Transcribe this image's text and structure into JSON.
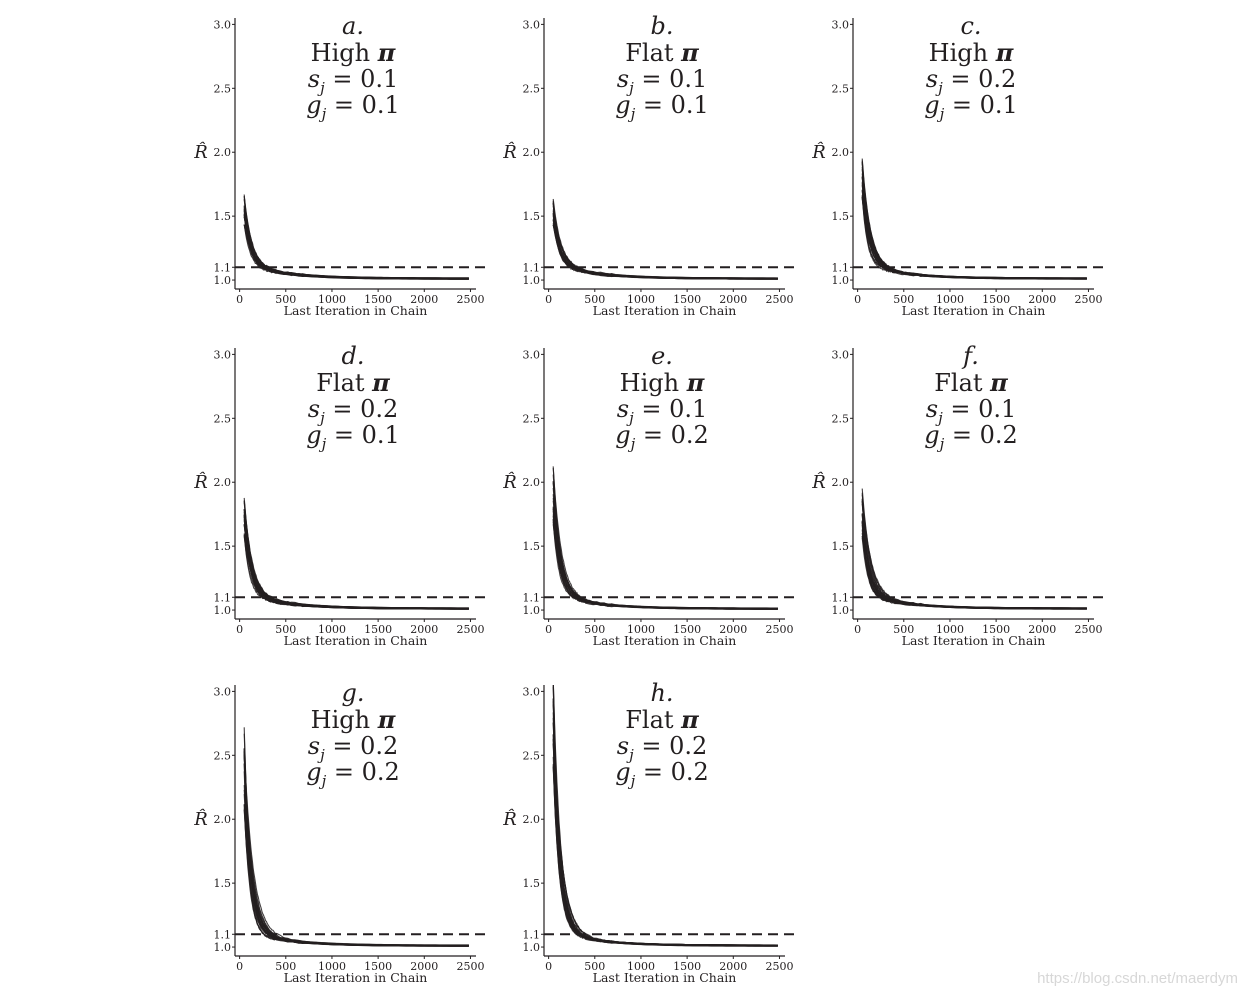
{
  "watermark": "https://blog.csdn.net/maerdym",
  "shared": {
    "xlabel": "Last Iteration in Chain",
    "ylabel": "R̂",
    "xticks": [
      0,
      500,
      1000,
      1500,
      2000,
      2500
    ],
    "yticks": [
      1.0,
      1.1,
      1.5,
      2.0,
      2.5,
      3.0
    ],
    "xlim": [
      -50,
      2560
    ],
    "ylim": [
      0.93,
      3.05
    ],
    "reference_line": 1.1
  },
  "chart_data": [
    {
      "type": "line",
      "letter": "a.",
      "prior": "High",
      "prior_symbol": "π",
      "s_label": "s",
      "s_sub": "j",
      "s_value": "= 0.1",
      "g_label": "g",
      "g_sub": "j",
      "g_value": "= 0.1",
      "start_max": 1.7,
      "spread": 0.12,
      "xlabel": "Last Iteration in Chain",
      "ylabel": "R̂"
    },
    {
      "type": "line",
      "letter": "b.",
      "prior": "Flat",
      "prior_symbol": "π",
      "s_label": "s",
      "s_sub": "j",
      "s_value": "= 0.1",
      "g_label": "g",
      "g_sub": "j",
      "g_value": "= 0.1",
      "start_max": 1.65,
      "spread": 0.1,
      "xlabel": "Last Iteration in Chain",
      "ylabel": "R̂"
    },
    {
      "type": "line",
      "letter": "c.",
      "prior": "High",
      "prior_symbol": "π",
      "s_label": "s",
      "s_sub": "j",
      "s_value": "= 0.2",
      "g_label": "g",
      "g_sub": "j",
      "g_value": "= 0.1",
      "start_max": 1.98,
      "spread": 0.15,
      "xlabel": "Last Iteration in Chain",
      "ylabel": "R̂"
    },
    {
      "type": "line",
      "letter": "d.",
      "prior": "Flat",
      "prior_symbol": "π",
      "s_label": "s",
      "s_sub": "j",
      "s_value": "= 0.2",
      "g_label": "g",
      "g_sub": "j",
      "g_value": "= 0.1",
      "start_max": 1.9,
      "spread": 0.14,
      "xlabel": "Last Iteration in Chain",
      "ylabel": "R̂"
    },
    {
      "type": "line",
      "letter": "e.",
      "prior": "High",
      "prior_symbol": "π",
      "s_label": "s",
      "s_sub": "j",
      "s_value": "= 0.1",
      "g_label": "g",
      "g_sub": "j",
      "g_value": "= 0.2",
      "start_max": 2.15,
      "spread": 0.22,
      "xlabel": "Last Iteration in Chain",
      "ylabel": "R̂"
    },
    {
      "type": "line",
      "letter": "f.",
      "prior": "Flat",
      "prior_symbol": "π",
      "s_label": "s",
      "s_sub": "j",
      "s_value": "= 0.1",
      "g_label": "g",
      "g_sub": "j",
      "g_value": "= 0.2",
      "start_max": 1.97,
      "spread": 0.18,
      "xlabel": "Last Iteration in Chain",
      "ylabel": "R̂"
    },
    {
      "type": "line",
      "letter": "g.",
      "prior": "High",
      "prior_symbol": "π",
      "s_label": "s",
      "s_sub": "j",
      "s_value": "= 0.2",
      "g_label": "g",
      "g_sub": "j",
      "g_value": "= 0.2",
      "start_max": 2.75,
      "spread": 0.3,
      "xlabel": "Last Iteration in Chain",
      "ylabel": "R̂"
    },
    {
      "type": "line",
      "letter": "h.",
      "prior": "Flat",
      "prior_symbol": "π",
      "s_label": "s",
      "s_sub": "j",
      "s_value": "= 0.2",
      "g_label": "g",
      "g_sub": "j",
      "g_value": "= 0.2",
      "start_max": 3.15,
      "spread": 0.35,
      "xlabel": "Last Iteration in Chain",
      "ylabel": "R̂"
    }
  ]
}
